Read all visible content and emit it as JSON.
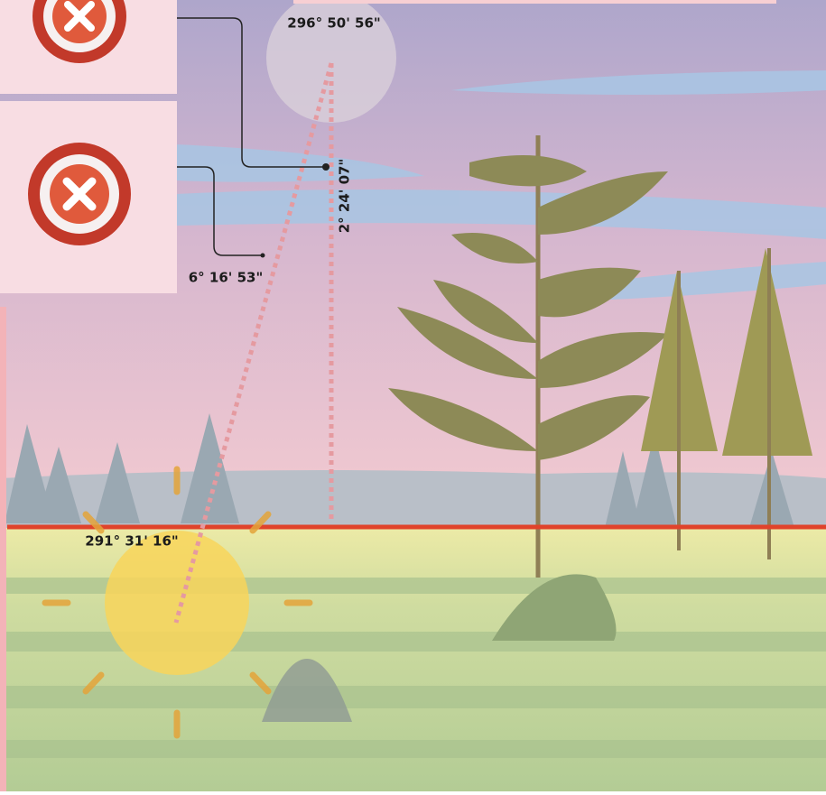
{
  "moon_azimuth": "296° 50' 56\"",
  "moon_altitude": "2° 24' 07\"",
  "angle_difference": "6° 16' 53\"",
  "sun_azimuth": "291° 31' 16\""
}
